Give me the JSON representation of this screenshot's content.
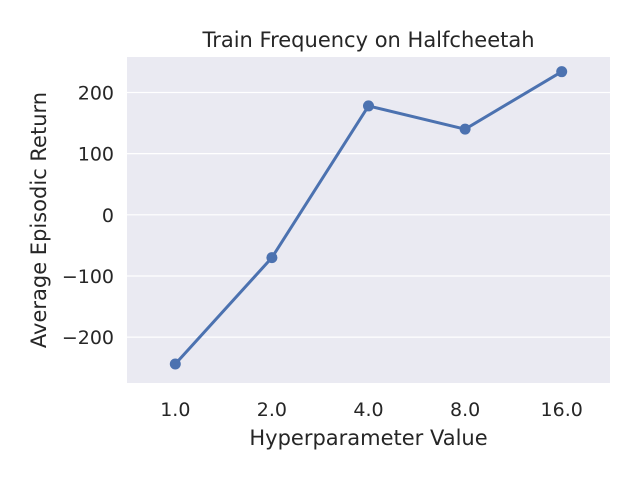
{
  "chart_data": {
    "type": "line",
    "title": "Train Frequency on Halfcheetah",
    "xlabel": "Hyperparameter Value",
    "ylabel": "Average Episodic Return",
    "categories": [
      "1.0",
      "2.0",
      "4.0",
      "8.0",
      "16.0"
    ],
    "series": [
      {
        "values": [
          -244,
          -70,
          178,
          140,
          234
        ]
      }
    ],
    "ylim": [
      -275,
      258
    ],
    "yticks": [
      -200,
      -100,
      0,
      100,
      200
    ],
    "ytick_labels": [
      "−200",
      "−100",
      "0",
      "100",
      "200"
    ],
    "grid": "horizontal",
    "legend": "none",
    "colors": {
      "background": "#eaeaf2",
      "grid": "#ffffff",
      "line": "#4c72b0",
      "text": "#262626"
    }
  }
}
